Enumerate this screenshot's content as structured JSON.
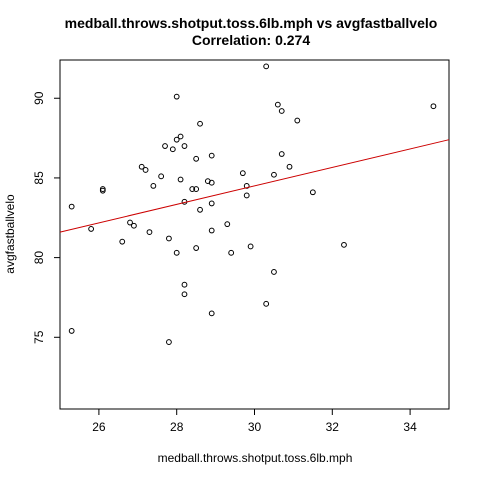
{
  "chart_data": {
    "type": "scatter",
    "title": "medball.throws.shotput.toss.6lb.mph vs avgfastballvelo",
    "subtitle": "Correlation: 0.274",
    "xlabel": "medball.throws.shotput.toss.6lb.mph",
    "ylabel": "avgfastballvelo",
    "xlim": [
      25,
      35
    ],
    "ylim": [
      70.5,
      92.4
    ],
    "xticks": [
      "26",
      "28",
      "30",
      "32",
      "34"
    ],
    "yticks": [
      "75",
      "80",
      "85",
      "90"
    ],
    "xtick_values": [
      26,
      28,
      30,
      32,
      34
    ],
    "ytick_values": [
      75,
      80,
      85,
      90
    ],
    "grid": false,
    "points": [
      {
        "x": 25.3,
        "y": 83.2
      },
      {
        "x": 25.3,
        "y": 75.4
      },
      {
        "x": 25.8,
        "y": 81.8
      },
      {
        "x": 26.1,
        "y": 84.3
      },
      {
        "x": 26.1,
        "y": 84.2
      },
      {
        "x": 26.6,
        "y": 81.0
      },
      {
        "x": 26.8,
        "y": 82.2
      },
      {
        "x": 26.9,
        "y": 82.0
      },
      {
        "x": 27.1,
        "y": 85.7
      },
      {
        "x": 27.2,
        "y": 85.5
      },
      {
        "x": 27.3,
        "y": 81.6
      },
      {
        "x": 27.4,
        "y": 84.5
      },
      {
        "x": 27.6,
        "y": 85.1
      },
      {
        "x": 27.7,
        "y": 87.0
      },
      {
        "x": 27.8,
        "y": 81.2
      },
      {
        "x": 27.8,
        "y": 74.7
      },
      {
        "x": 27.9,
        "y": 86.8
      },
      {
        "x": 28.0,
        "y": 90.1
      },
      {
        "x": 28.0,
        "y": 87.4
      },
      {
        "x": 28.0,
        "y": 80.3
      },
      {
        "x": 28.1,
        "y": 87.6
      },
      {
        "x": 28.1,
        "y": 84.9
      },
      {
        "x": 28.2,
        "y": 87.0
      },
      {
        "x": 28.2,
        "y": 83.5
      },
      {
        "x": 28.2,
        "y": 78.3
      },
      {
        "x": 28.2,
        "y": 77.7
      },
      {
        "x": 28.4,
        "y": 84.3
      },
      {
        "x": 28.5,
        "y": 86.2
      },
      {
        "x": 28.5,
        "y": 84.3
      },
      {
        "x": 28.5,
        "y": 80.6
      },
      {
        "x": 28.6,
        "y": 88.4
      },
      {
        "x": 28.6,
        "y": 83.0
      },
      {
        "x": 28.8,
        "y": 84.8
      },
      {
        "x": 28.9,
        "y": 86.4
      },
      {
        "x": 28.9,
        "y": 84.7
      },
      {
        "x": 28.9,
        "y": 83.4
      },
      {
        "x": 28.9,
        "y": 81.7
      },
      {
        "x": 28.9,
        "y": 76.5
      },
      {
        "x": 29.3,
        "y": 82.1
      },
      {
        "x": 29.4,
        "y": 80.3
      },
      {
        "x": 29.7,
        "y": 85.3
      },
      {
        "x": 29.8,
        "y": 84.5
      },
      {
        "x": 29.8,
        "y": 83.9
      },
      {
        "x": 29.9,
        "y": 80.7
      },
      {
        "x": 30.3,
        "y": 92.0
      },
      {
        "x": 30.3,
        "y": 77.1
      },
      {
        "x": 30.5,
        "y": 85.2
      },
      {
        "x": 30.5,
        "y": 79.1
      },
      {
        "x": 30.6,
        "y": 89.6
      },
      {
        "x": 30.7,
        "y": 89.2
      },
      {
        "x": 30.7,
        "y": 86.5
      },
      {
        "x": 30.9,
        "y": 85.7
      },
      {
        "x": 31.1,
        "y": 88.6
      },
      {
        "x": 31.5,
        "y": 84.1
      },
      {
        "x": 32.3,
        "y": 80.8
      },
      {
        "x": 34.6,
        "y": 89.5
      }
    ],
    "trendline": {
      "x1": 25,
      "y1": 81.6,
      "x2": 35,
      "y2": 87.4
    },
    "colors": {
      "points": "#000000",
      "trendline": "#cc0000",
      "frame": "#000000"
    }
  }
}
